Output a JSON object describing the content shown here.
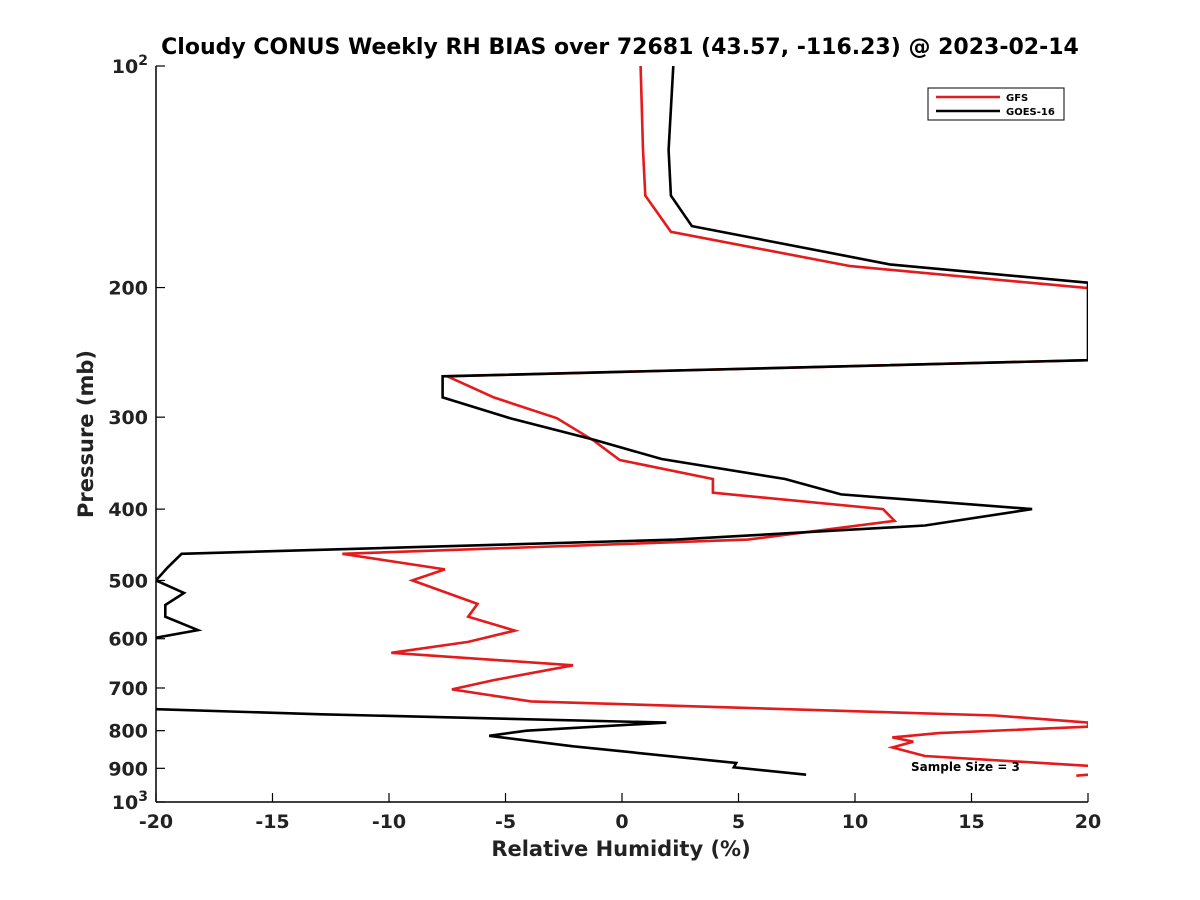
{
  "chart_data": {
    "type": "line",
    "title": "Cloudy CONUS Weekly RH BIAS over 72681 (43.57, -116.23) @ 2023-02-14",
    "xlabel": "Relative Humidity (%)",
    "ylabel": "Pressure (mb)",
    "xlim": [
      -20,
      20
    ],
    "ylim": [
      1000,
      100
    ],
    "yscale": "log",
    "y_reversed": true,
    "xticks": [
      -20,
      -15,
      -10,
      -5,
      0,
      5,
      10,
      15,
      20
    ],
    "xtick_labels": [
      "-20",
      "-15",
      "-10",
      "-5",
      "0",
      "5",
      "10",
      "15",
      "20"
    ],
    "yticks": [
      {
        "value": 100,
        "base": "10",
        "exp": "2"
      },
      {
        "value": 200,
        "label": "200"
      },
      {
        "value": 300,
        "label": "300"
      },
      {
        "value": 400,
        "label": "400"
      },
      {
        "value": 500,
        "label": "500"
      },
      {
        "value": 600,
        "label": "600"
      },
      {
        "value": 700,
        "label": "700"
      },
      {
        "value": 800,
        "label": "800"
      },
      {
        "value": 900,
        "label": "900"
      },
      {
        "value": 1000,
        "base": "10",
        "exp": "3"
      }
    ],
    "grid": false,
    "legend_position": "top-right",
    "annotation": "Sample Size = 3",
    "series": [
      {
        "name": "GFS",
        "color": "#e41a1c",
        "points": [
          [
            0.8,
            100
          ],
          [
            0.9,
            130
          ],
          [
            1.0,
            150
          ],
          [
            2.1,
            168
          ],
          [
            9.8,
            187
          ],
          [
            20.5,
            201
          ],
          [
            20.2,
            250
          ],
          [
            20.0,
            251
          ],
          [
            -7.5,
            264
          ],
          [
            -5.5,
            282
          ],
          [
            -2.8,
            301
          ],
          [
            -1.2,
            323
          ],
          [
            -0.1,
            343
          ],
          [
            3.9,
            364
          ],
          [
            3.9,
            380
          ],
          [
            11.2,
            400
          ],
          [
            11.7,
            415
          ],
          [
            5.4,
            440
          ],
          [
            -12.0,
            460
          ],
          [
            -7.6,
            483
          ],
          [
            -9.0,
            500
          ],
          [
            -6.2,
            538
          ],
          [
            -6.6,
            560
          ],
          [
            -4.6,
            585
          ],
          [
            -6.6,
            606
          ],
          [
            -9.9,
            627
          ],
          [
            -2.1,
            652
          ],
          [
            -5.5,
            683
          ],
          [
            -7.3,
            703
          ],
          [
            -3.9,
            730
          ],
          [
            16.0,
            763
          ],
          [
            20.0,
            780
          ],
          [
            20.0,
            790
          ],
          [
            13.6,
            806
          ],
          [
            11.6,
            817
          ],
          [
            12.5,
            828
          ],
          [
            11.6,
            843
          ],
          [
            13.0,
            866
          ],
          [
            20.0,
            893
          ]
        ]
      },
      {
        "name": "",
        "color": "#e41a1c",
        "points": [
          [
            19.5,
            921
          ],
          [
            20.0,
            918
          ]
        ]
      },
      {
        "name": "GOES-16",
        "color": "#000000",
        "points": [
          [
            2.2,
            100
          ],
          [
            2.0,
            130
          ],
          [
            2.1,
            150
          ],
          [
            3.0,
            165
          ],
          [
            11.5,
            186
          ],
          [
            20.0,
            197
          ],
          [
            20.0,
            251
          ],
          [
            -7.7,
            264
          ],
          [
            -7.7,
            282
          ],
          [
            -4.8,
            301
          ],
          [
            -1.2,
            322
          ],
          [
            1.7,
            342
          ],
          [
            7.0,
            364
          ],
          [
            9.4,
            382
          ],
          [
            17.6,
            400
          ],
          [
            13.0,
            421
          ],
          [
            2.3,
            440
          ],
          [
            -18.9,
            460
          ],
          [
            -19.5,
            480
          ],
          [
            -20.0,
            500
          ],
          [
            -18.8,
            520
          ],
          [
            -19.6,
            540
          ],
          [
            -19.6,
            560
          ],
          [
            -18.2,
            584
          ],
          [
            -20.0,
            598
          ]
        ]
      },
      {
        "name": "",
        "color": "#000000",
        "points": [
          [
            -20.0,
            748
          ],
          [
            -12.9,
            760
          ],
          [
            1.9,
            780
          ],
          [
            -4.1,
            800
          ],
          [
            -5.7,
            813
          ],
          [
            -2.1,
            840
          ],
          [
            4.9,
            885
          ],
          [
            4.8,
            897
          ],
          [
            7.9,
            918
          ]
        ]
      }
    ]
  }
}
